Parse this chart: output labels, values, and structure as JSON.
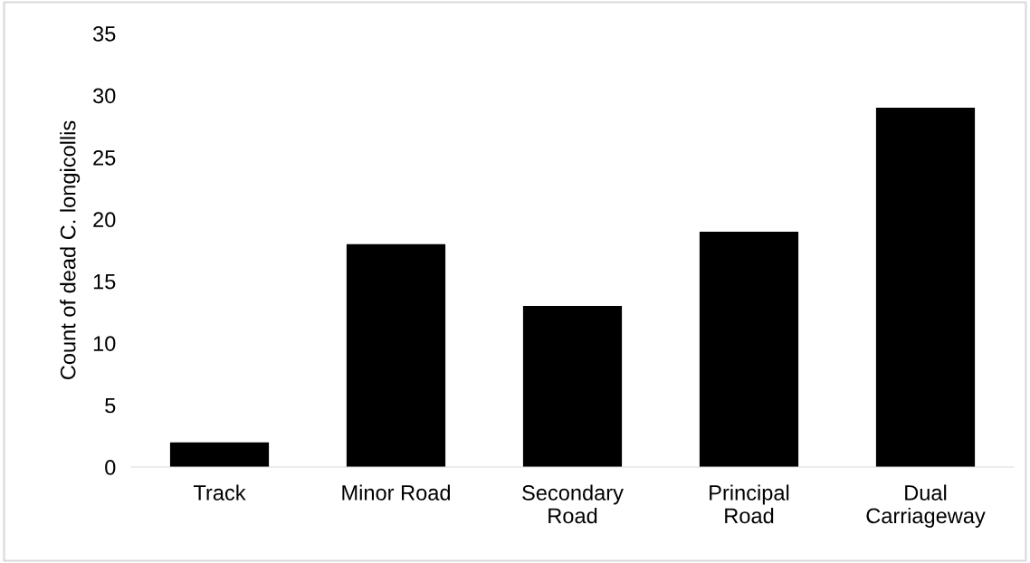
{
  "chart_data": {
    "type": "bar",
    "ylabel": "Count of dead C. longicollis",
    "categories": [
      "Track",
      "Minor Road",
      "Secondary\nRoad",
      "Principal\nRoad",
      "Dual\nCarriageway"
    ],
    "values": [
      2,
      18,
      13,
      19,
      29
    ],
    "color": "#000000",
    "ylim": [
      0,
      35
    ],
    "yticks": [
      0,
      5,
      10,
      15,
      20,
      25,
      30,
      35
    ],
    "grid": false
  }
}
